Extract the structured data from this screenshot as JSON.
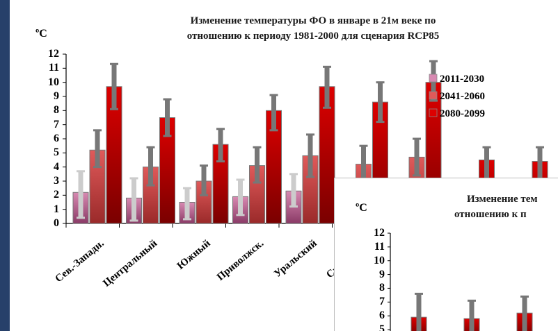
{
  "slide_bg": "#ffffff",
  "chart_data": [
    {
      "type": "bar",
      "title_line1": "Изменение температуры ФО в январе  в 21м веке по",
      "title_line2": "отношению к  периоду 1981-2000 для сценария RCP85",
      "ylabel": "ºC",
      "ylim": [
        0,
        12
      ],
      "yticks": [
        "0",
        "1",
        "2",
        "3",
        "4",
        "5",
        "6",
        "7",
        "8",
        "9",
        "10",
        "11",
        "12"
      ],
      "categories": [
        "Сев.-Западн.",
        "Центральный",
        "Южный",
        "Приволжск.",
        "Уральский",
        "Сибирский",
        "",
        "",
        ""
      ],
      "series": [
        {
          "name": "2011-2030",
          "color": "#d88ab2",
          "values": [
            2.2,
            1.8,
            1.5,
            1.9,
            2.3,
            null,
            null,
            null,
            null
          ],
          "err_low": [
            1.8,
            1.6,
            1.2,
            1.3,
            1.1,
            null,
            null,
            null,
            null
          ],
          "err_high": [
            1.5,
            1.4,
            1.0,
            1.2,
            1.2,
            null,
            null,
            null,
            null
          ]
        },
        {
          "name": "2041-2060",
          "color": "#e05a5a",
          "values": [
            5.2,
            4.0,
            3.0,
            4.1,
            4.8,
            4.2,
            4.7,
            null,
            null
          ],
          "err_low": [
            1.2,
            1.3,
            1.0,
            1.2,
            1.5,
            1.2,
            1.3,
            null,
            null
          ],
          "err_high": [
            1.4,
            1.4,
            1.1,
            1.3,
            1.5,
            1.3,
            1.3,
            null,
            null
          ]
        },
        {
          "name": "2080-2099",
          "color": "#dd0000",
          "values": [
            9.7,
            7.5,
            5.6,
            8.0,
            9.7,
            8.6,
            10.0,
            4.5,
            4.4
          ],
          "err_low": [
            1.6,
            1.3,
            1.2,
            1.4,
            1.5,
            1.4,
            1.3,
            1.5,
            1.5
          ],
          "err_high": [
            1.6,
            1.3,
            1.1,
            1.1,
            1.4,
            1.4,
            1.5,
            0.9,
            1.0
          ]
        }
      ],
      "grid": false,
      "legend": "top-right"
    },
    {
      "type": "bar",
      "title_line1": "Изменение тем",
      "title_line2": "отношению к  п",
      "ylabel": "ºC",
      "ylim": [
        0,
        12
      ],
      "yticks": [
        "12",
        "11",
        "10",
        "9",
        "8",
        "7",
        "6",
        "5"
      ],
      "series": [
        {
          "name": "",
          "color": "#dd0000",
          "values": [
            5.9,
            5.8,
            6.2
          ],
          "err_high": [
            1.7,
            1.3,
            1.2
          ]
        }
      ],
      "grid": false
    }
  ]
}
